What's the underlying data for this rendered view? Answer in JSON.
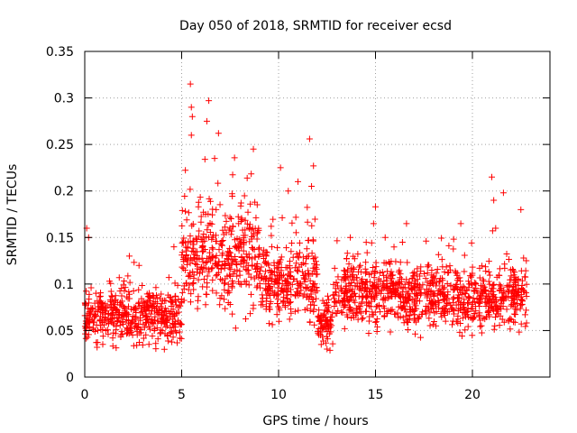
{
  "chart_data": {
    "type": "scatter",
    "title": "Day 050 of 2018, SRMTID for receiver ecsd",
    "xlabel": "GPS time / hours",
    "ylabel": "SRMTID / TECUs",
    "xlim": [
      0,
      24
    ],
    "ylim": [
      0,
      0.35
    ],
    "xticks": [
      0,
      5,
      10,
      15,
      20
    ],
    "xtick_labels": [
      "0",
      "5",
      "10",
      "15",
      "20"
    ],
    "yticks": [
      0,
      0.05,
      0.1,
      0.15,
      0.2,
      0.25,
      0.3,
      0.35
    ],
    "ytick_labels": [
      "0",
      "0.05",
      "0.1",
      "0.15",
      "0.2",
      "0.25",
      "0.3",
      "0.35"
    ],
    "grid": true,
    "marker": "+",
    "color": "#ff0000",
    "x_data_range": [
      0,
      22.8
    ],
    "series": [
      {
        "name": "SRMTID",
        "segments": [
          {
            "x": [
              0.0,
              5.0
            ],
            "mean": 0.065,
            "spread": 0.025,
            "peaks": [
              [
                0.1,
                0.16
              ],
              [
                0.2,
                0.15
              ],
              [
                2.3,
                0.13
              ],
              [
                2.8,
                0.12
              ],
              [
                4.6,
                0.14
              ]
            ]
          },
          {
            "x": [
              5.0,
              9.0
            ],
            "mean": 0.13,
            "spread": 0.05,
            "peaks": [
              [
                5.45,
                0.315
              ],
              [
                5.5,
                0.29
              ],
              [
                5.55,
                0.28
              ],
              [
                5.5,
                0.26
              ],
              [
                6.3,
                0.275
              ],
              [
                6.4,
                0.297
              ],
              [
                6.9,
                0.262
              ],
              [
                6.2,
                0.234
              ],
              [
                6.7,
                0.235
              ],
              [
                8.7,
                0.245
              ],
              [
                7.6,
                0.197
              ]
            ]
          },
          {
            "x": [
              9.0,
              12.0
            ],
            "mean": 0.1,
            "spread": 0.035,
            "peaks": [
              [
                10.1,
                0.225
              ],
              [
                10.5,
                0.2
              ],
              [
                11.6,
                0.256
              ],
              [
                11.8,
                0.227
              ],
              [
                11.7,
                0.205
              ],
              [
                11.0,
                0.21
              ]
            ]
          },
          {
            "x": [
              12.0,
              12.8
            ],
            "mean": 0.06,
            "spread": 0.02,
            "peaks": [
              [
                12.2,
                0.035
              ],
              [
                12.5,
                0.03
              ]
            ]
          },
          {
            "x": [
              12.8,
              16.0
            ],
            "mean": 0.09,
            "spread": 0.03,
            "peaks": [
              [
                13.7,
                0.15
              ],
              [
                15.0,
                0.183
              ],
              [
                14.9,
                0.165
              ],
              [
                15.5,
                0.15
              ]
            ]
          },
          {
            "x": [
              16.0,
              22.8
            ],
            "mean": 0.085,
            "spread": 0.03,
            "peaks": [
              [
                16.6,
                0.165
              ],
              [
                19.4,
                0.165
              ],
              [
                21.0,
                0.215
              ],
              [
                21.1,
                0.19
              ],
              [
                21.6,
                0.198
              ],
              [
                22.5,
                0.18
              ],
              [
                21.2,
                0.16
              ]
            ]
          }
        ]
      }
    ]
  }
}
